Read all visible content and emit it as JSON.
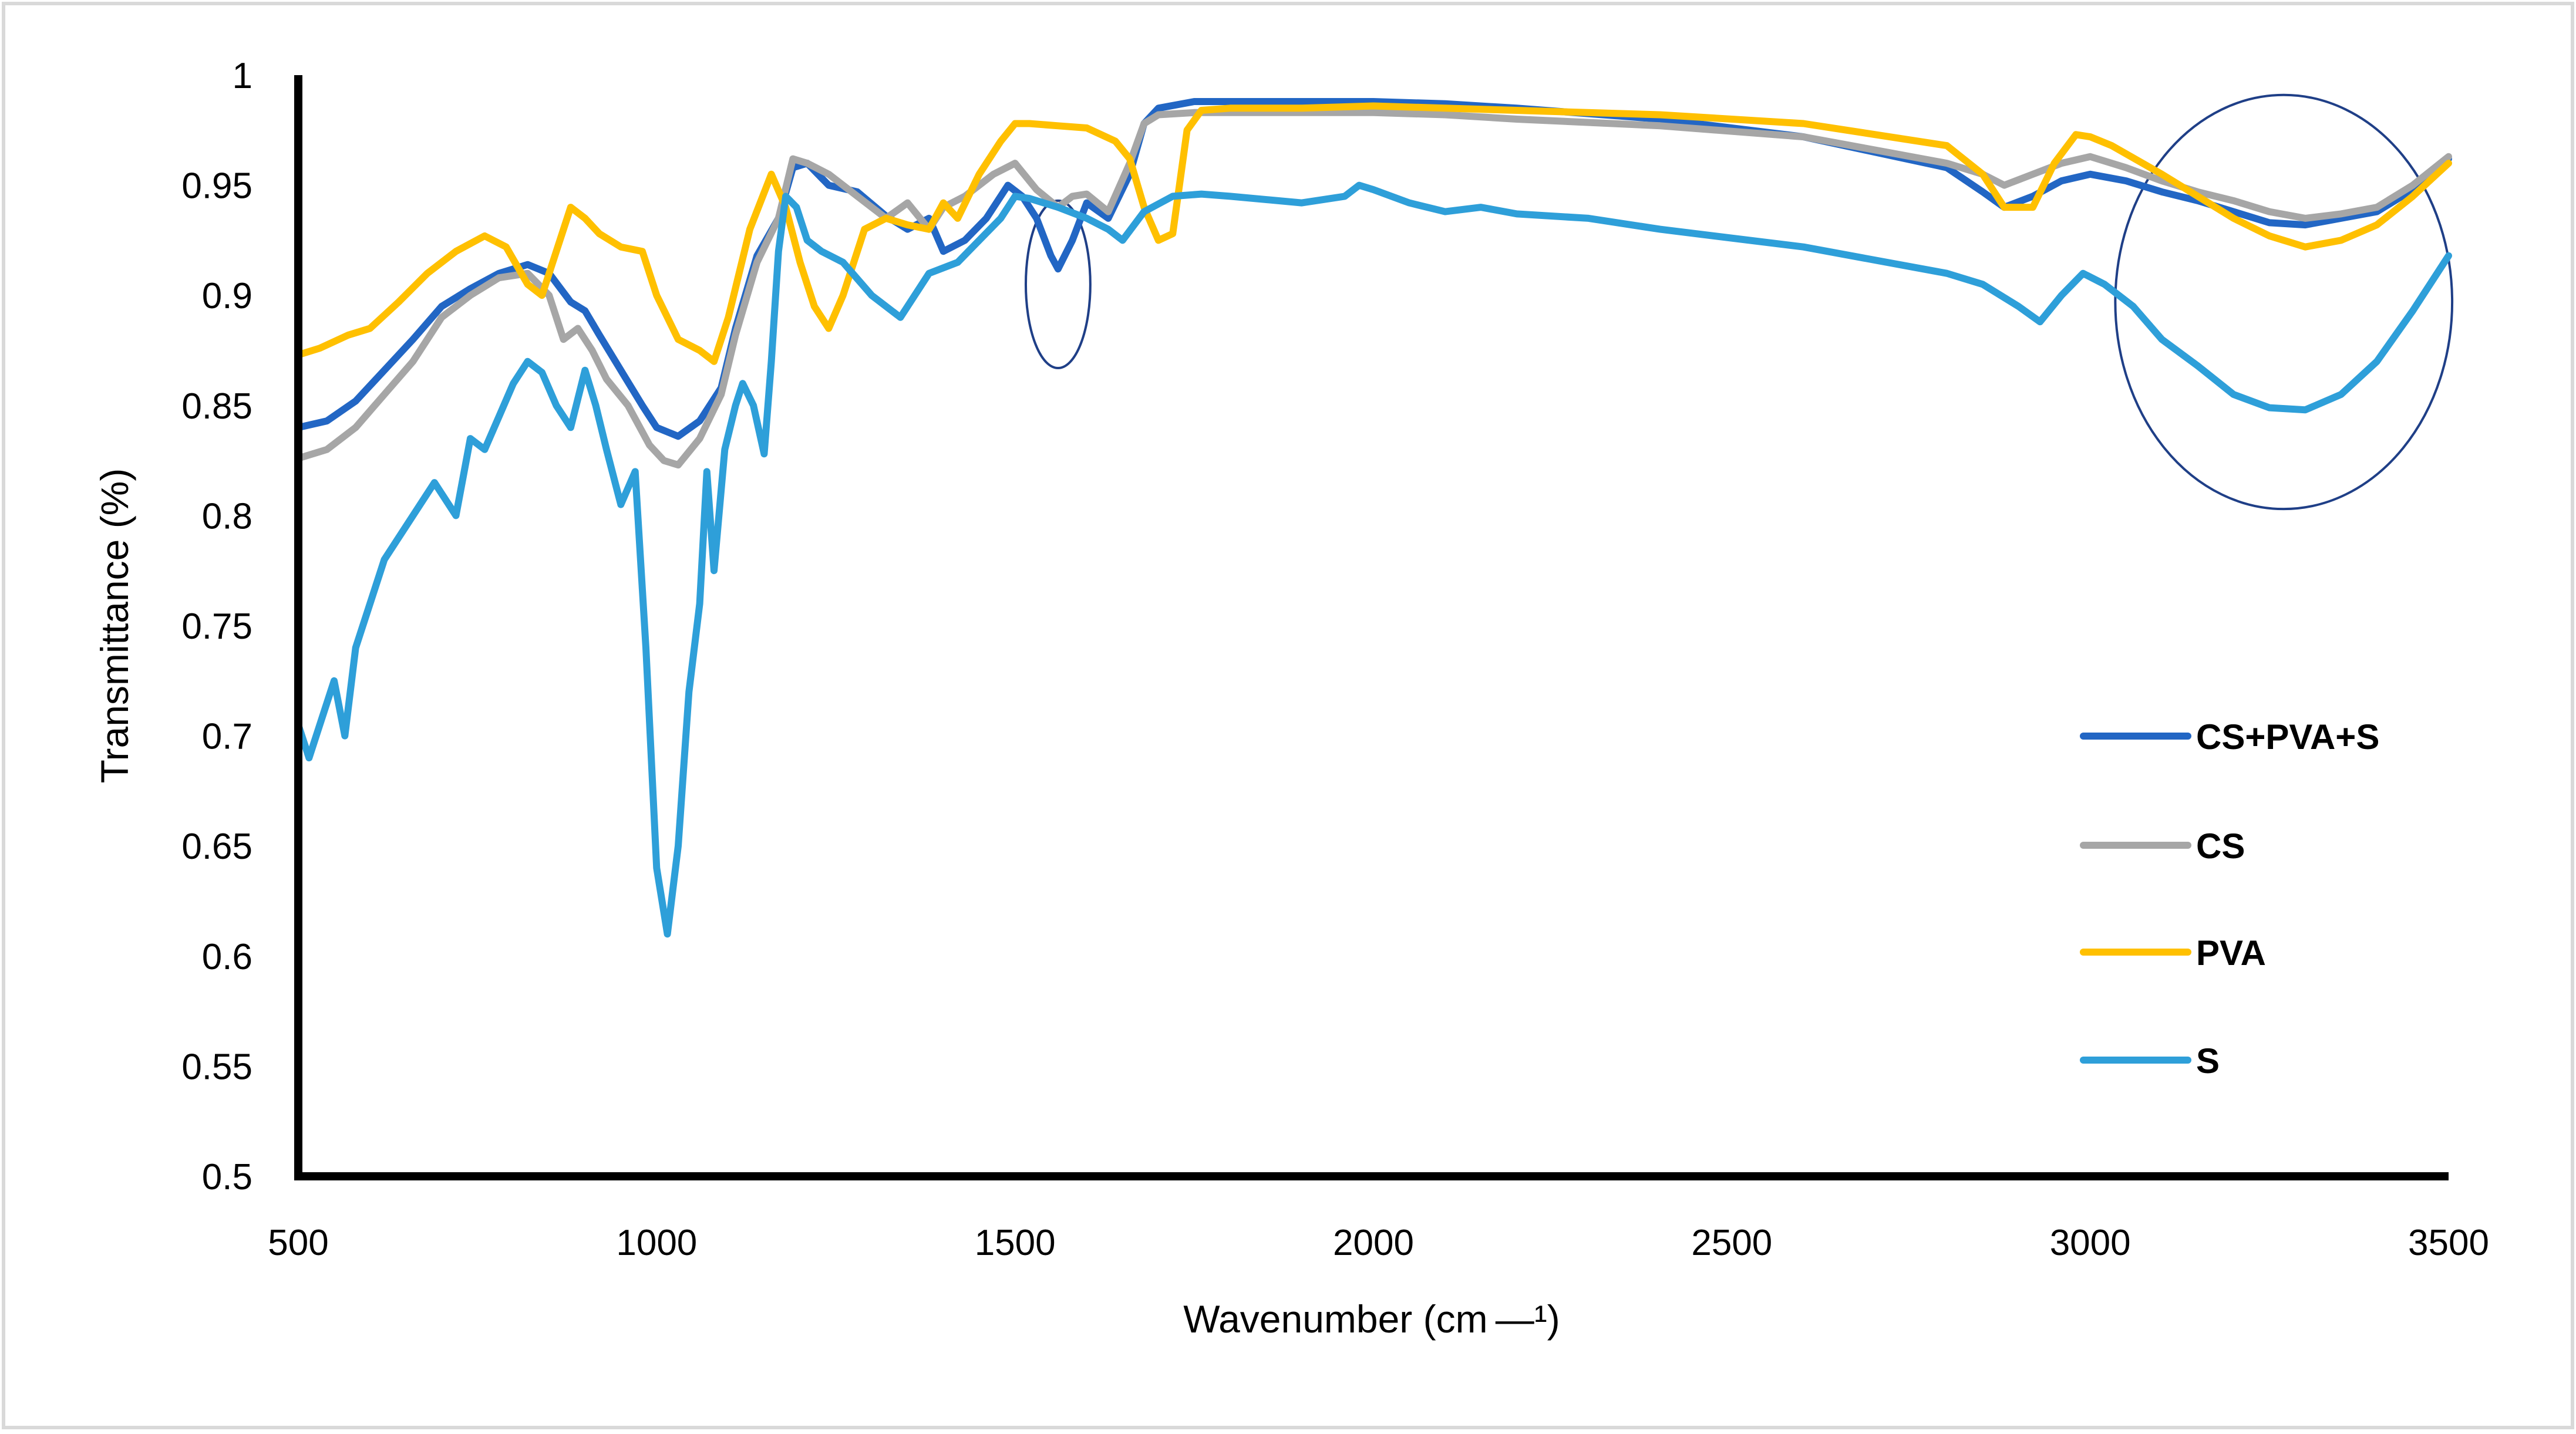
{
  "chart_data": {
    "type": "line",
    "title": "",
    "xlabel": "Wavenumber (cm —¹)",
    "ylabel": "Transmittance (%)",
    "xlim": [
      500,
      3500
    ],
    "ylim": [
      0.5,
      1
    ],
    "x_ticks": [
      500,
      1000,
      1500,
      2000,
      2500,
      3000,
      3500
    ],
    "x_tick_labels": [
      "500",
      "1000",
      "1500",
      "2000",
      "2500",
      "3000",
      "3500"
    ],
    "y_ticks": [
      0.5,
      0.55,
      0.6,
      0.65,
      0.7,
      0.75,
      0.8,
      0.85,
      0.9,
      0.95,
      1
    ],
    "y_tick_labels": [
      "0.5",
      "0.55",
      "0.6",
      "0.65",
      "0.7",
      "0.75",
      "0.8",
      "0.85",
      "0.9",
      "0.95",
      "1"
    ],
    "grid": false,
    "legend_position": "right",
    "series": [
      {
        "name": "CS+PVA+S",
        "color": "#2266c4",
        "x": [
          500,
          540,
          580,
          620,
          660,
          700,
          740,
          780,
          820,
          850,
          880,
          900,
          920,
          950,
          980,
          1000,
          1030,
          1060,
          1090,
          1110,
          1140,
          1170,
          1190,
          1210,
          1240,
          1280,
          1320,
          1350,
          1380,
          1400,
          1430,
          1460,
          1490,
          1510,
          1530,
          1550,
          1560,
          1580,
          1600,
          1630,
          1660,
          1680,
          1700,
          1750,
          1800,
          1900,
          2000,
          2100,
          2200,
          2400,
          2600,
          2800,
          2850,
          2880,
          2920,
          2960,
          3000,
          3050,
          3100,
          3150,
          3200,
          3250,
          3300,
          3350,
          3400,
          3450,
          3500
        ],
        "y": [
          0.84,
          0.843,
          0.852,
          0.866,
          0.88,
          0.895,
          0.903,
          0.91,
          0.914,
          0.91,
          0.897,
          0.893,
          0.882,
          0.866,
          0.85,
          0.84,
          0.836,
          0.843,
          0.858,
          0.885,
          0.918,
          0.935,
          0.958,
          0.96,
          0.95,
          0.947,
          0.936,
          0.93,
          0.935,
          0.92,
          0.925,
          0.935,
          0.95,
          0.945,
          0.935,
          0.918,
          0.912,
          0.925,
          0.942,
          0.935,
          0.955,
          0.978,
          0.985,
          0.988,
          0.988,
          0.988,
          0.988,
          0.987,
          0.985,
          0.98,
          0.972,
          0.958,
          0.947,
          0.94,
          0.945,
          0.952,
          0.955,
          0.952,
          0.947,
          0.943,
          0.938,
          0.933,
          0.932,
          0.935,
          0.938,
          0.948,
          0.962
        ]
      },
      {
        "name": "CS",
        "color": "#a6a6a6",
        "x": [
          500,
          540,
          580,
          620,
          660,
          700,
          740,
          780,
          820,
          850,
          870,
          890,
          910,
          930,
          960,
          990,
          1010,
          1030,
          1060,
          1090,
          1110,
          1140,
          1170,
          1190,
          1210,
          1240,
          1280,
          1320,
          1350,
          1380,
          1400,
          1430,
          1470,
          1500,
          1530,
          1560,
          1580,
          1600,
          1630,
          1660,
          1680,
          1700,
          1750,
          1800,
          1900,
          2000,
          2100,
          2200,
          2400,
          2600,
          2800,
          2850,
          2880,
          2920,
          2960,
          3000,
          3050,
          3100,
          3150,
          3200,
          3250,
          3300,
          3350,
          3400,
          3450,
          3500
        ],
        "y": [
          0.826,
          0.83,
          0.84,
          0.855,
          0.87,
          0.89,
          0.9,
          0.908,
          0.91,
          0.9,
          0.88,
          0.885,
          0.875,
          0.862,
          0.85,
          0.832,
          0.825,
          0.823,
          0.835,
          0.855,
          0.882,
          0.915,
          0.935,
          0.962,
          0.96,
          0.955,
          0.945,
          0.935,
          0.942,
          0.93,
          0.94,
          0.945,
          0.955,
          0.96,
          0.948,
          0.94,
          0.945,
          0.946,
          0.938,
          0.96,
          0.978,
          0.982,
          0.983,
          0.983,
          0.983,
          0.983,
          0.982,
          0.98,
          0.977,
          0.972,
          0.96,
          0.955,
          0.95,
          0.955,
          0.96,
          0.963,
          0.958,
          0.952,
          0.947,
          0.943,
          0.938,
          0.935,
          0.937,
          0.94,
          0.95,
          0.963
        ]
      },
      {
        "name": "PVA",
        "color": "#ffc000",
        "x": [
          500,
          530,
          570,
          600,
          640,
          680,
          720,
          760,
          790,
          820,
          840,
          860,
          880,
          900,
          920,
          950,
          980,
          1000,
          1030,
          1060,
          1080,
          1100,
          1130,
          1160,
          1180,
          1200,
          1220,
          1240,
          1260,
          1290,
          1320,
          1350,
          1380,
          1400,
          1420,
          1450,
          1480,
          1500,
          1520,
          1560,
          1600,
          1640,
          1660,
          1680,
          1700,
          1720,
          1740,
          1760,
          1800,
          1900,
          2000,
          2100,
          2200,
          2400,
          2600,
          2800,
          2850,
          2880,
          2920,
          2950,
          2980,
          3000,
          3030,
          3100,
          3150,
          3200,
          3250,
          3300,
          3350,
          3400,
          3450,
          3500
        ],
        "y": [
          0.873,
          0.876,
          0.882,
          0.885,
          0.897,
          0.91,
          0.92,
          0.927,
          0.922,
          0.905,
          0.9,
          0.92,
          0.94,
          0.935,
          0.928,
          0.922,
          0.92,
          0.9,
          0.88,
          0.875,
          0.87,
          0.89,
          0.93,
          0.955,
          0.94,
          0.915,
          0.895,
          0.885,
          0.9,
          0.93,
          0.935,
          0.932,
          0.93,
          0.942,
          0.935,
          0.955,
          0.97,
          0.978,
          0.978,
          0.977,
          0.976,
          0.97,
          0.962,
          0.94,
          0.925,
          0.928,
          0.975,
          0.984,
          0.985,
          0.985,
          0.986,
          0.985,
          0.984,
          0.982,
          0.978,
          0.968,
          0.955,
          0.94,
          0.94,
          0.96,
          0.973,
          0.972,
          0.968,
          0.955,
          0.945,
          0.935,
          0.927,
          0.922,
          0.925,
          0.932,
          0.945,
          0.96
        ]
      },
      {
        "name": "S",
        "color": "#2e9fd9",
        "x": [
          500,
          515,
          530,
          550,
          565,
          580,
          600,
          620,
          640,
          660,
          690,
          720,
          740,
          760,
          780,
          800,
          820,
          840,
          860,
          880,
          900,
          915,
          930,
          950,
          970,
          985,
          1000,
          1015,
          1030,
          1045,
          1060,
          1070,
          1080,
          1095,
          1110,
          1120,
          1135,
          1150,
          1160,
          1170,
          1180,
          1195,
          1210,
          1230,
          1260,
          1300,
          1340,
          1380,
          1420,
          1450,
          1480,
          1500,
          1520,
          1560,
          1600,
          1630,
          1650,
          1680,
          1720,
          1760,
          1800,
          1900,
          1960,
          1980,
          2000,
          2050,
          2100,
          2150,
          2200,
          2300,
          2400,
          2600,
          2800,
          2850,
          2900,
          2930,
          2960,
          2990,
          3020,
          3060,
          3100,
          3150,
          3200,
          3250,
          3300,
          3350,
          3400,
          3450,
          3500
        ],
        "y": [
          0.705,
          0.69,
          0.705,
          0.725,
          0.7,
          0.74,
          0.76,
          0.78,
          0.79,
          0.8,
          0.815,
          0.8,
          0.835,
          0.83,
          0.845,
          0.86,
          0.87,
          0.865,
          0.85,
          0.84,
          0.866,
          0.85,
          0.83,
          0.805,
          0.82,
          0.74,
          0.64,
          0.61,
          0.65,
          0.72,
          0.76,
          0.82,
          0.775,
          0.83,
          0.85,
          0.86,
          0.85,
          0.828,
          0.87,
          0.92,
          0.945,
          0.94,
          0.925,
          0.92,
          0.915,
          0.9,
          0.89,
          0.91,
          0.915,
          0.925,
          0.935,
          0.945,
          0.944,
          0.94,
          0.935,
          0.93,
          0.925,
          0.938,
          0.945,
          0.946,
          0.945,
          0.942,
          0.945,
          0.95,
          0.948,
          0.942,
          0.938,
          0.94,
          0.937,
          0.935,
          0.93,
          0.922,
          0.91,
          0.905,
          0.895,
          0.888,
          0.9,
          0.91,
          0.905,
          0.895,
          0.88,
          0.868,
          0.855,
          0.849,
          0.848,
          0.855,
          0.87,
          0.893,
          0.918
        ]
      }
    ],
    "annotations": [
      {
        "type": "ellipse",
        "cx": 1560,
        "cy": 0.905,
        "rx": 45,
        "ry": 0.038,
        "color": "#1f3f87"
      },
      {
        "type": "ellipse",
        "cx": 3270,
        "cy": 0.897,
        "rx": 235,
        "ry": 0.094,
        "color": "#1f3f87"
      }
    ]
  }
}
